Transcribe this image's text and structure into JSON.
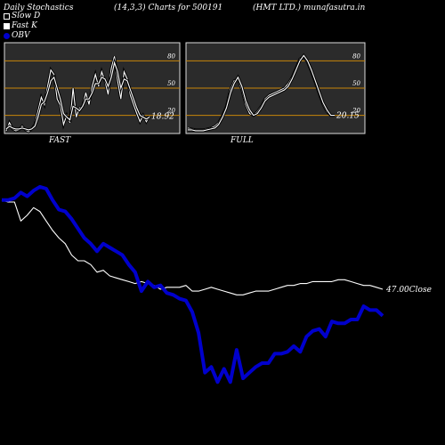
{
  "header": {
    "title": "Daily Stochastics",
    "params": "(14,3,3) Charts for 500191",
    "source": "(HMT LTD.) munafasutra.in"
  },
  "legend": {
    "slow_d": "Slow  D",
    "fast_k": "Fast K",
    "obv": "OBV"
  },
  "colors": {
    "panel_bg": "#2b2b2b",
    "level_line": "#c8860a",
    "obv": "#0000cc",
    "price": "#ffffff",
    "stoch": "#ffffff"
  },
  "chart_data": [
    {
      "type": "line",
      "name": "FAST",
      "label": "FAST",
      "ylim": [
        0,
        100
      ],
      "levels": [
        20,
        50,
        80
      ],
      "level_labels": [
        "20",
        "50",
        "80"
      ],
      "last_value_label": "18.92",
      "series": [
        {
          "name": "Fast K",
          "values": [
            3,
            12,
            5,
            3,
            4,
            8,
            4,
            2,
            5,
            10,
            25,
            40,
            32,
            52,
            70,
            65,
            38,
            31,
            10,
            20,
            12,
            50,
            18,
            28,
            30,
            45,
            32,
            52,
            65,
            52,
            68,
            58,
            43,
            72,
            85,
            58,
            38,
            68,
            60,
            42,
            32,
            22,
            13,
            20,
            13,
            19
          ]
        },
        {
          "name": "Slow D",
          "values": [
            5,
            8,
            6,
            5,
            5,
            6,
            5,
            4,
            5,
            8,
            18,
            32,
            35,
            45,
            58,
            62,
            50,
            38,
            22,
            18,
            15,
            30,
            28,
            25,
            30,
            38,
            38,
            45,
            55,
            55,
            62,
            60,
            52,
            62,
            78,
            68,
            50,
            60,
            58,
            48,
            38,
            28,
            20,
            18,
            16,
            18
          ]
        }
      ]
    },
    {
      "type": "line",
      "name": "FULL",
      "label": "FULL",
      "ylim": [
        0,
        100
      ],
      "levels": [
        20,
        50,
        80
      ],
      "level_labels": [
        "20",
        "50",
        "80"
      ],
      "last_value_label": "20.15",
      "series": [
        {
          "name": "Slow D",
          "values": [
            6,
            5,
            4,
            4,
            4,
            5,
            6,
            8,
            12,
            20,
            30,
            48,
            58,
            60,
            48,
            32,
            22,
            20,
            24,
            30,
            38,
            42,
            44,
            46,
            48,
            50,
            55,
            62,
            72,
            82,
            85,
            78,
            68,
            56,
            44,
            32,
            24,
            20,
            20
          ]
        },
        {
          "name": "Fast K",
          "values": [
            4,
            4,
            3,
            3,
            3,
            4,
            5,
            6,
            10,
            18,
            28,
            44,
            55,
            62,
            52,
            36,
            26,
            20,
            22,
            28,
            36,
            40,
            42,
            44,
            46,
            48,
            52,
            60,
            70,
            80,
            86,
            80,
            70,
            58,
            46,
            34,
            26,
            20,
            20
          ]
        }
      ]
    },
    {
      "type": "line",
      "name": "OBV and Close",
      "close_label": "47.00Close",
      "series": [
        {
          "name": "Close",
          "values": [
            56,
            55,
            55,
            45,
            48,
            52,
            50,
            45,
            40,
            36,
            33,
            27,
            24,
            24,
            22,
            18,
            19,
            16,
            15,
            14,
            13,
            12,
            13,
            12,
            11,
            9,
            10,
            10,
            10,
            11,
            8,
            8,
            9,
            10,
            9,
            8,
            7,
            6,
            6,
            7,
            8,
            8,
            8,
            9,
            10,
            11,
            11,
            12,
            12,
            13,
            13,
            13,
            13,
            14,
            14,
            13,
            12,
            11,
            11,
            10,
            9
          ]
        },
        {
          "name": "OBV",
          "values": [
            56,
            56,
            57,
            60,
            58,
            61,
            63,
            62,
            56,
            51,
            50,
            46,
            41,
            36,
            33,
            29,
            33,
            31,
            29,
            27,
            22,
            18,
            8,
            13,
            10,
            11,
            7,
            6,
            4,
            3,
            -3,
            -14,
            -35,
            -32,
            -40,
            -33,
            -40,
            -23,
            -38,
            -35,
            -32,
            -30,
            -30,
            -25,
            -25,
            -24,
            -21,
            -24,
            -16,
            -13,
            -12,
            -16,
            -8,
            -9,
            -9,
            -7,
            -7,
            0,
            -2,
            -2,
            -5
          ]
        }
      ],
      "close_range": [
        -45,
        70
      ]
    }
  ]
}
